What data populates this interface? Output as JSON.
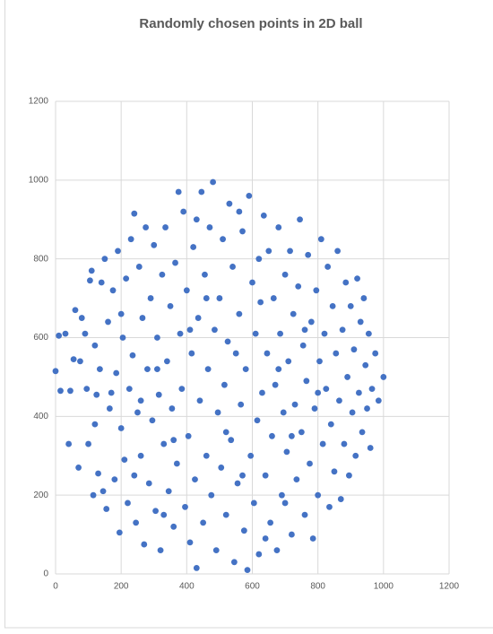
{
  "chart_data": {
    "type": "scatter",
    "title": "Randomly chosen points in 2D ball",
    "color": "#4472c4",
    "grid": true,
    "xlim": [
      0,
      1200
    ],
    "ylim": [
      0,
      1200
    ],
    "xticks": [
      0,
      200,
      400,
      600,
      800,
      1000,
      1200
    ],
    "yticks": [
      0,
      200,
      400,
      600,
      800,
      1000,
      1200
    ],
    "x": [
      0,
      10,
      15,
      30,
      40,
      45,
      55,
      60,
      70,
      75,
      80,
      90,
      95,
      100,
      105,
      110,
      115,
      120,
      125,
      130,
      135,
      140,
      145,
      150,
      155,
      160,
      165,
      170,
      175,
      180,
      185,
      190,
      195,
      200,
      205,
      210,
      215,
      220,
      225,
      230,
      235,
      240,
      245,
      250,
      255,
      260,
      265,
      270,
      275,
      280,
      285,
      290,
      295,
      300,
      305,
      310,
      315,
      320,
      325,
      330,
      335,
      340,
      345,
      350,
      355,
      360,
      365,
      370,
      375,
      380,
      385,
      390,
      395,
      400,
      405,
      410,
      415,
      420,
      425,
      430,
      435,
      440,
      445,
      450,
      455,
      460,
      465,
      470,
      475,
      480,
      485,
      490,
      495,
      500,
      505,
      510,
      515,
      520,
      525,
      530,
      535,
      540,
      545,
      550,
      555,
      560,
      565,
      570,
      575,
      580,
      585,
      590,
      595,
      600,
      605,
      610,
      615,
      620,
      625,
      630,
      635,
      640,
      645,
      650,
      655,
      660,
      665,
      670,
      675,
      680,
      685,
      690,
      695,
      700,
      705,
      710,
      715,
      720,
      725,
      730,
      735,
      740,
      745,
      750,
      755,
      760,
      765,
      770,
      775,
      780,
      785,
      790,
      795,
      800,
      805,
      810,
      815,
      820,
      825,
      830,
      835,
      840,
      845,
      850,
      855,
      860,
      865,
      870,
      875,
      880,
      885,
      890,
      895,
      900,
      905,
      910,
      915,
      920,
      925,
      930,
      935,
      940,
      945,
      950,
      955,
      960,
      965,
      975,
      985,
      1000,
      120,
      200,
      260,
      310,
      360,
      410,
      460,
      520,
      570,
      620,
      680,
      720,
      760,
      800,
      240,
      330,
      430,
      560,
      640,
      700
    ],
    "y": [
      515,
      605,
      465,
      610,
      330,
      465,
      545,
      670,
      270,
      540,
      650,
      610,
      470,
      330,
      745,
      770,
      200,
      580,
      455,
      255,
      520,
      740,
      210,
      800,
      165,
      640,
      420,
      460,
      720,
      240,
      510,
      820,
      105,
      370,
      600,
      290,
      750,
      180,
      470,
      850,
      555,
      915,
      130,
      410,
      780,
      300,
      650,
      75,
      880,
      520,
      230,
      700,
      390,
      835,
      160,
      600,
      455,
      60,
      760,
      330,
      880,
      540,
      210,
      680,
      420,
      120,
      790,
      280,
      970,
      610,
      470,
      920,
      170,
      720,
      350,
      80,
      560,
      830,
      240,
      15,
      650,
      440,
      970,
      130,
      760,
      300,
      520,
      880,
      200,
      995,
      620,
      60,
      410,
      700,
      270,
      850,
      480,
      150,
      590,
      940,
      340,
      780,
      30,
      560,
      230,
      660,
      430,
      870,
      110,
      520,
      10,
      960,
      300,
      740,
      180,
      610,
      390,
      50,
      690,
      460,
      910,
      250,
      560,
      820,
      130,
      350,
      700,
      480,
      60,
      880,
      610,
      200,
      410,
      760,
      310,
      540,
      820,
      100,
      660,
      430,
      240,
      730,
      900,
      360,
      580,
      150,
      490,
      810,
      280,
      640,
      90,
      420,
      720,
      200,
      540,
      850,
      330,
      610,
      470,
      780,
      170,
      380,
      680,
      260,
      560,
      820,
      440,
      190,
      620,
      330,
      740,
      500,
      250,
      680,
      410,
      570,
      300,
      750,
      460,
      640,
      360,
      700,
      530,
      420,
      610,
      320,
      470,
      560,
      440,
      500,
      380,
      660,
      440,
      520,
      340,
      620,
      700,
      360,
      250,
      800,
      520,
      350,
      620,
      460,
      250,
      150,
      900,
      920,
      90,
      180
    ]
  }
}
